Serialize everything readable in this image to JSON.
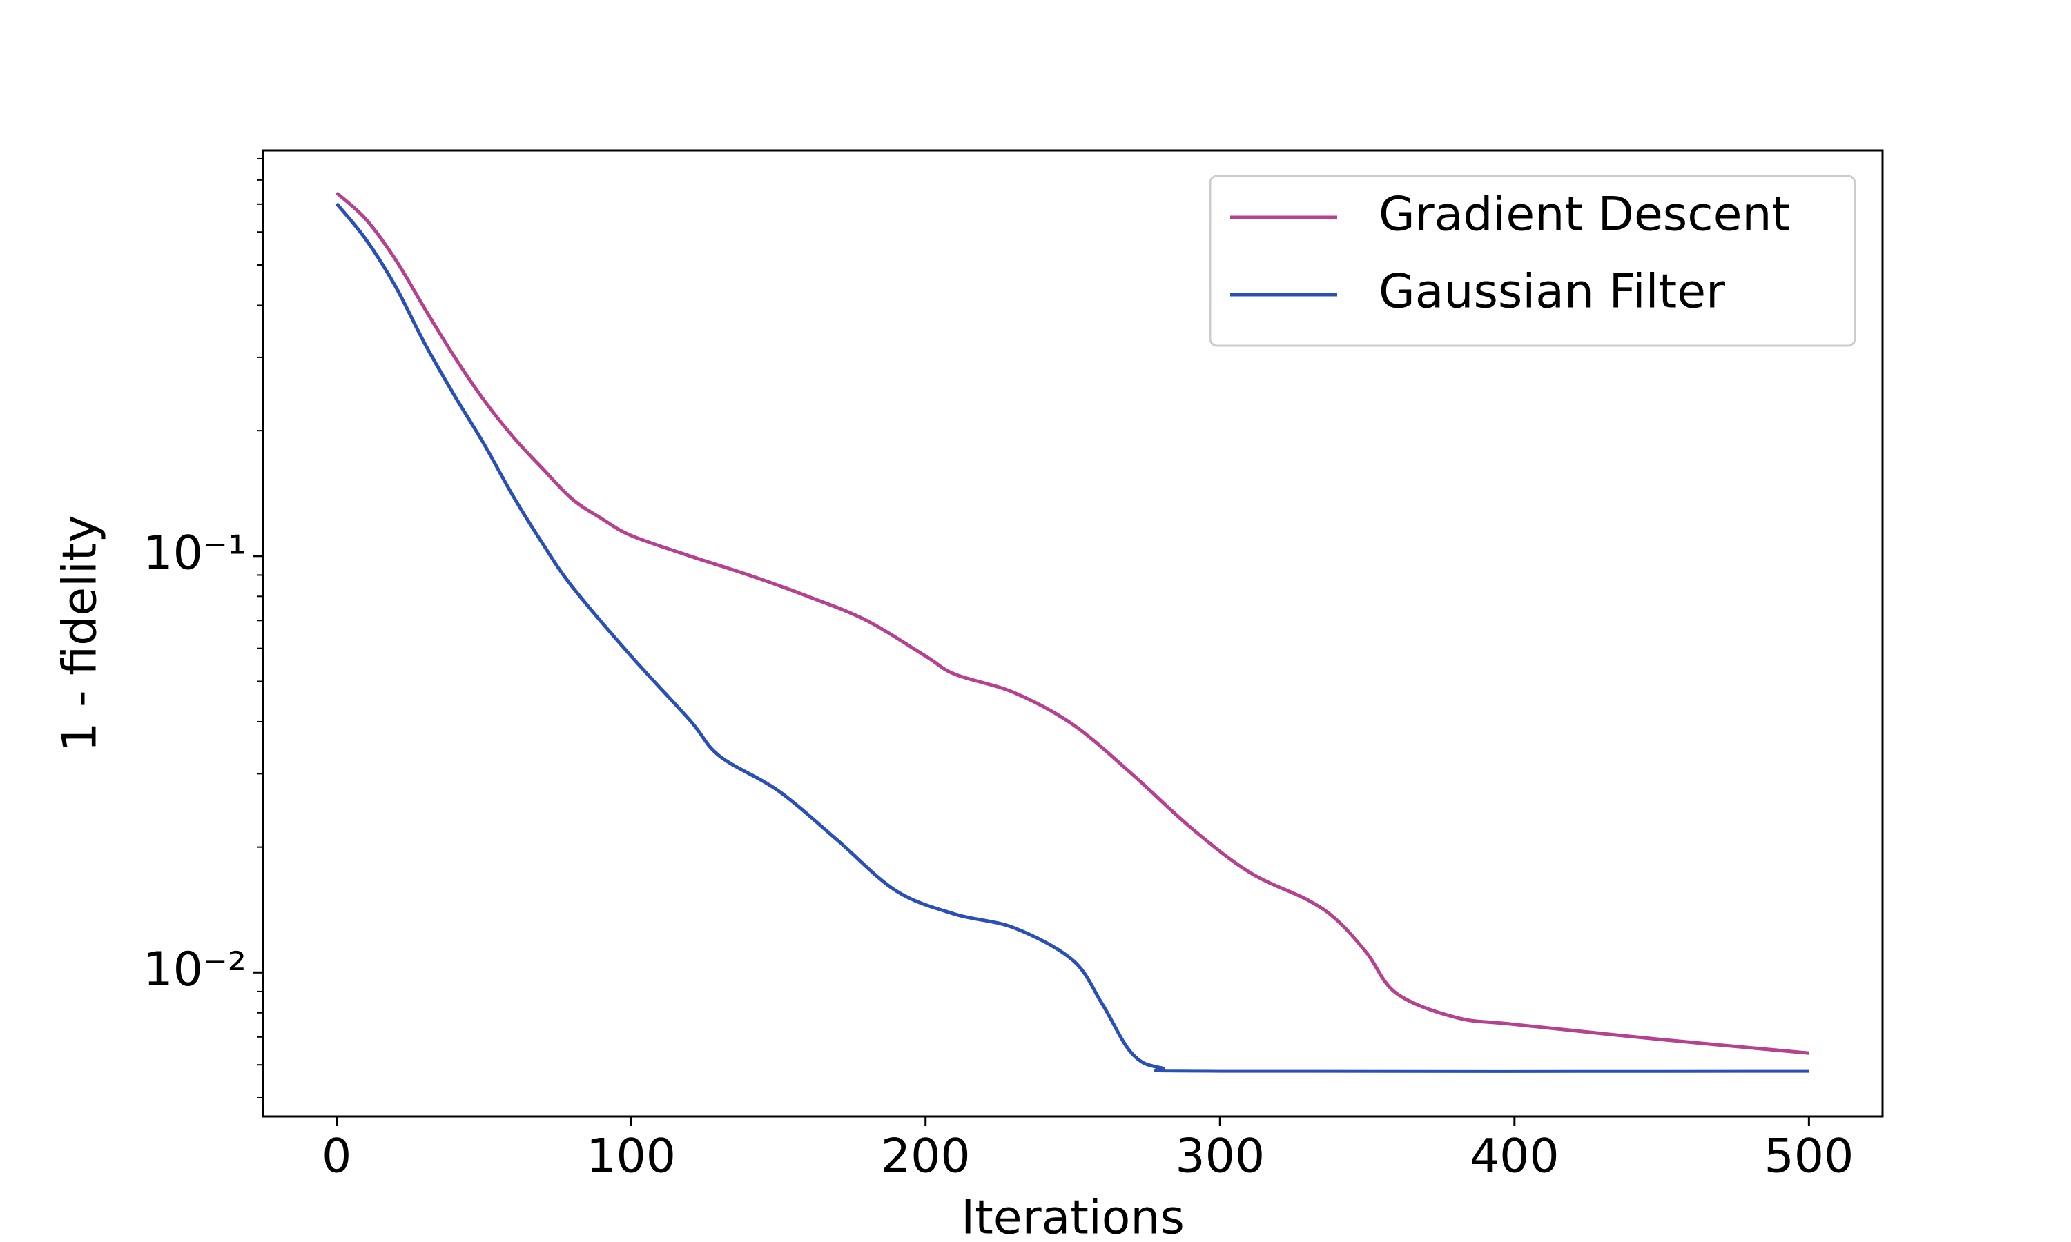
{
  "chart_data": {
    "type": "line",
    "x_label": "Iterations",
    "y_label": "1 - fidelity",
    "log_y": true,
    "legend": "upper right",
    "xlim": [
      -25,
      525
    ],
    "xticks": [
      0,
      100,
      200,
      300,
      400,
      500
    ],
    "ylim": [
      0.00451,
      0.942
    ],
    "yticks": [
      {
        "value": 0.01,
        "label": "10⁻²"
      },
      {
        "value": 0.1,
        "label": "10⁻¹"
      }
    ],
    "yminorticks": [
      0.005,
      0.006,
      0.007,
      0.008,
      0.009,
      0.02,
      0.03,
      0.04,
      0.05,
      0.06,
      0.07,
      0.08,
      0.09,
      0.2,
      0.3,
      0.4,
      0.5,
      0.6,
      0.7,
      0.8,
      0.9
    ],
    "series": [
      {
        "name": "Gradient Descent",
        "color": "#b5418f",
        "x": [
          0,
          10,
          20,
          30,
          40,
          50,
          60,
          70,
          80,
          90,
          100,
          120,
          140,
          160,
          180,
          200,
          210,
          230,
          250,
          270,
          290,
          310,
          330,
          340,
          350,
          360,
          380,
          400,
          450,
          500
        ],
        "values": [
          0.745,
          0.643,
          0.515,
          0.392,
          0.301,
          0.237,
          0.193,
          0.162,
          0.137,
          0.123,
          0.112,
          0.1,
          0.09,
          0.08,
          0.07,
          0.0575,
          0.052,
          0.047,
          0.0394,
          0.03,
          0.0223,
          0.0174,
          0.0149,
          0.0133,
          0.0111,
          0.0089,
          0.0078,
          0.0075,
          0.0069,
          0.0064
        ]
      },
      {
        "name": "Gaussian Filter",
        "color": "#2a50b8",
        "x": [
          0,
          10,
          20,
          30,
          40,
          50,
          60,
          70,
          80,
          100,
          120,
          130,
          150,
          170,
          190,
          210,
          230,
          250,
          260,
          270,
          280,
          300,
          500
        ],
        "values": [
          0.702,
          0.575,
          0.444,
          0.323,
          0.243,
          0.186,
          0.139,
          0.107,
          0.0844,
          0.0575,
          0.0403,
          0.0331,
          0.0273,
          0.0208,
          0.0157,
          0.0138,
          0.0128,
          0.0107,
          0.0084,
          0.0064,
          0.0059,
          0.0058,
          0.0058
        ]
      }
    ]
  }
}
